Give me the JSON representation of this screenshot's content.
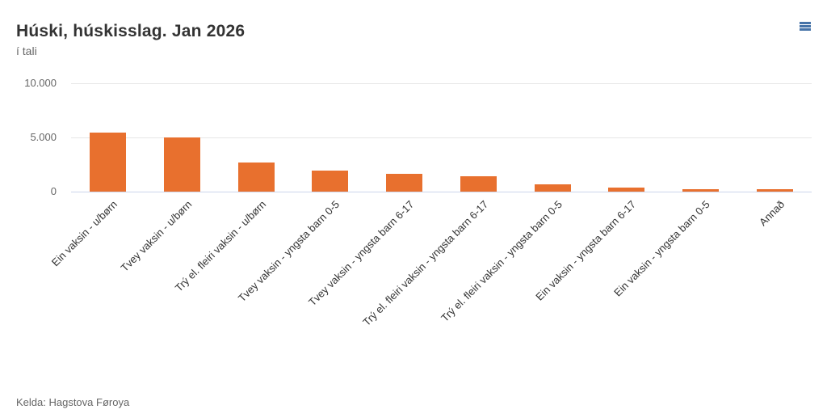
{
  "chart_data": {
    "type": "bar",
    "title": "Húski, húskisslag. Jan 2026",
    "subtitle": "í tali",
    "categories": [
      "Ein vaksin - u/børn",
      "Tvey vaksin - u/børn",
      "Trý el. fleiri vaksin - u/børn",
      "Tvey vaksin - yngsta barn 0-5",
      "Tvey vaksin - yngsta barn 6-17",
      "Trý el. fleiri vaksin - yngsta barn 6-17",
      "Trý el. fleiri vaksin - yngsta barn 0-5",
      "Ein vaksin - yngsta barn 6-17",
      "Ein vaksin - yngsta barn 0-5",
      "Annað"
    ],
    "values": [
      5450,
      5000,
      2700,
      1950,
      1650,
      1450,
      700,
      380,
      250,
      190
    ],
    "xlabel": "",
    "ylabel": "",
    "ylim": [
      0,
      10000
    ],
    "yticks": [
      0,
      5000,
      10000
    ],
    "ytick_labels": [
      "0",
      "5.000",
      "10.000"
    ],
    "grid": true,
    "legend": false,
    "x_label_rotation": -45,
    "bar_color": "#e8702e"
  },
  "menu": {
    "icon": "hamburger-menu"
  },
  "footer": {
    "source": "Kelda: Hagstova Føroya"
  },
  "colors": {
    "bar": "#e8702e",
    "gridline": "#e6e6e6",
    "axis_line": "#ccd6eb",
    "title_text": "#333333",
    "muted_text": "#666666",
    "x_label_text": "#333333",
    "menu_icon": "#4673a8",
    "background": "#ffffff"
  }
}
